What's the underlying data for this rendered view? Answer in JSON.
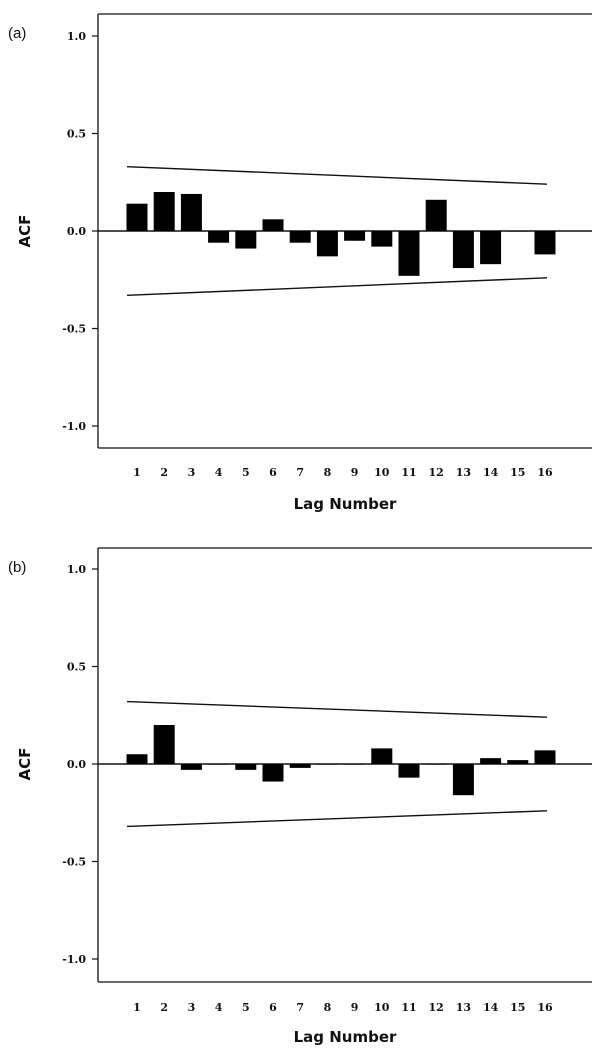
{
  "chart_data": [
    {
      "type": "bar",
      "panel_label": "(a)",
      "xlabel": "Lag Number",
      "ylabel": "ACF",
      "ylim": [
        -1.1,
        1.1
      ],
      "yticks": [
        "1.0",
        "0.5",
        "0.0",
        "-0.5",
        "-1.0"
      ],
      "ytick_values": [
        1.0,
        0.5,
        0.0,
        -0.5,
        -1.0
      ],
      "categories": [
        "1",
        "2",
        "3",
        "4",
        "5",
        "6",
        "7",
        "8",
        "9",
        "10",
        "11",
        "12",
        "13",
        "14",
        "15",
        "16"
      ],
      "values": [
        0.14,
        0.2,
        0.19,
        -0.06,
        -0.09,
        0.06,
        -0.06,
        -0.13,
        -0.05,
        -0.08,
        -0.23,
        0.16,
        -0.19,
        -0.17,
        0.0,
        -0.12
      ],
      "confidence_upper": [
        0.33,
        0.24
      ],
      "confidence_lower": [
        -0.33,
        -0.24
      ],
      "grid": false,
      "bar_color": "#000000"
    },
    {
      "type": "bar",
      "panel_label": "(b)",
      "xlabel": "Lag Number",
      "ylabel": "ACF",
      "ylim": [
        -1.1,
        1.1
      ],
      "yticks": [
        "1.0",
        "0.5",
        "0.0",
        "-0.5",
        "-1.0"
      ],
      "ytick_values": [
        1.0,
        0.5,
        0.0,
        -0.5,
        -1.0
      ],
      "categories": [
        "1",
        "2",
        "3",
        "4",
        "5",
        "6",
        "7",
        "8",
        "9",
        "10",
        "11",
        "12",
        "13",
        "14",
        "15",
        "16"
      ],
      "values": [
        0.05,
        0.2,
        -0.03,
        0.0,
        -0.03,
        -0.09,
        -0.02,
        0.0,
        0.0,
        0.08,
        -0.07,
        0.0,
        -0.16,
        0.03,
        0.02,
        0.07
      ],
      "confidence_upper": [
        0.32,
        0.24
      ],
      "confidence_lower": [
        -0.32,
        -0.24
      ],
      "grid": false,
      "bar_color": "#000000"
    }
  ]
}
